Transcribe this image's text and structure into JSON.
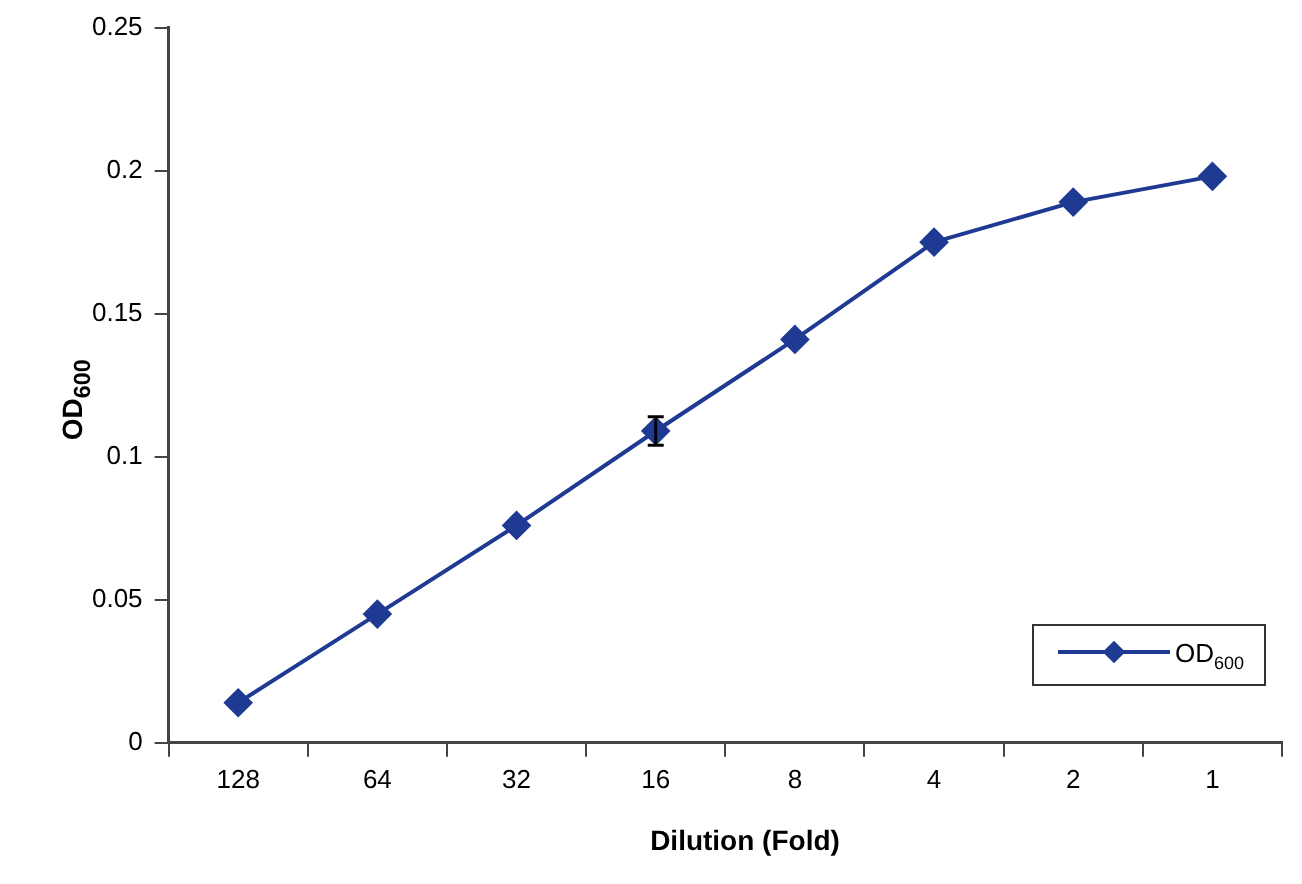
{
  "chart_data": {
    "type": "line",
    "xlabel": "Dilution (Fold)",
    "ylabel": "OD$_{600}$",
    "categories": [
      "128",
      "64",
      "32",
      "16",
      "8",
      "4",
      "2",
      "1"
    ],
    "series": [
      {
        "name": "OD$_{600}$",
        "color": "#1f3a93",
        "values": [
          0.014,
          0.045,
          0.076,
          0.109,
          0.141,
          0.175,
          0.189,
          0.198
        ],
        "errors": [
          null,
          null,
          null,
          0.005,
          null,
          null,
          null,
          null
        ]
      }
    ],
    "ylim": [
      0,
      0.25
    ],
    "yticks": [
      0,
      0.05,
      0.1,
      0.15,
      0.2,
      0.25
    ],
    "grid": false,
    "legend": "bottom right",
    "marker": "diamond",
    "line_style": "solid"
  }
}
